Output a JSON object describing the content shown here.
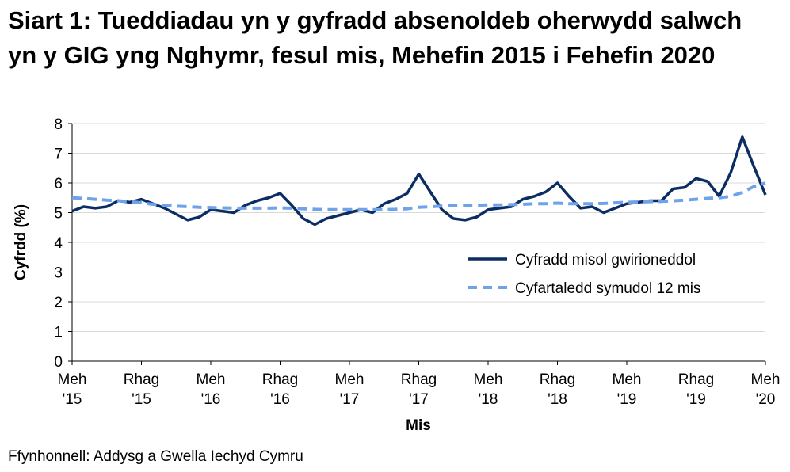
{
  "chart_data": {
    "type": "line",
    "title": "Siart 1: Tueddiadau yn y gyfradd absenoldeb oherwydd salwch yn y GIG yng Nghymr, fesul mis, Mehefin 2015 i Fehefin 2020",
    "y_label": "Cyfrdd (%)",
    "x_label": "Mis",
    "source": "Ffynhonnell: Addysg a Gwella Iechyd Cymru",
    "categories": [
      "Meh '15",
      null,
      null,
      null,
      null,
      null,
      "Rhag '15",
      null,
      null,
      null,
      null,
      null,
      "Meh '16",
      null,
      null,
      null,
      null,
      null,
      "Rhag '16",
      null,
      null,
      null,
      null,
      null,
      "Meh '17",
      null,
      null,
      null,
      null,
      null,
      "Rhag '17",
      null,
      null,
      null,
      null,
      null,
      "Meh '18",
      null,
      null,
      null,
      null,
      null,
      "Rhag '18",
      null,
      null,
      null,
      null,
      null,
      "Meh '19",
      null,
      null,
      null,
      null,
      null,
      "Rhag '19",
      null,
      null,
      null,
      null,
      null,
      "Meh '20"
    ],
    "series": [
      {
        "name": "Cyfradd misol gwirioneddol",
        "color": "#0b2d63",
        "dashed": false,
        "values": [
          5.05,
          5.2,
          5.15,
          5.2,
          5.4,
          5.35,
          5.45,
          5.3,
          5.15,
          4.95,
          4.75,
          4.85,
          5.1,
          5.05,
          5.0,
          5.25,
          5.4,
          5.5,
          5.65,
          5.25,
          4.8,
          4.6,
          4.8,
          4.9,
          5.0,
          5.1,
          5.0,
          5.3,
          5.45,
          5.65,
          6.3,
          5.7,
          5.1,
          4.8,
          4.75,
          4.85,
          5.1,
          5.15,
          5.2,
          5.45,
          5.55,
          5.7,
          6.0,
          5.55,
          5.15,
          5.2,
          5.0,
          5.15,
          5.3,
          5.35,
          5.4,
          5.4,
          5.8,
          5.85,
          6.15,
          6.05,
          5.55,
          6.35,
          7.55,
          6.55,
          5.6
        ]
      },
      {
        "name": "Cyfartaledd symudol 12 mis",
        "color": "#6ea3ea",
        "dashed": true,
        "values": [
          5.5,
          5.48,
          5.45,
          5.42,
          5.4,
          5.37,
          5.33,
          5.28,
          5.25,
          5.22,
          5.2,
          5.18,
          5.17,
          5.16,
          5.15,
          5.15,
          5.15,
          5.15,
          5.16,
          5.15,
          5.13,
          5.11,
          5.1,
          5.1,
          5.1,
          5.1,
          5.1,
          5.1,
          5.11,
          5.13,
          5.18,
          5.2,
          5.22,
          5.23,
          5.25,
          5.25,
          5.26,
          5.26,
          5.27,
          5.28,
          5.3,
          5.3,
          5.32,
          5.3,
          5.3,
          5.3,
          5.31,
          5.33,
          5.35,
          5.36,
          5.37,
          5.38,
          5.4,
          5.42,
          5.45,
          5.48,
          5.5,
          5.55,
          5.68,
          5.88,
          6.0
        ]
      }
    ],
    "ylim": [
      0,
      8
    ],
    "yticks": [
      0,
      1,
      2,
      3,
      4,
      5,
      6,
      7,
      8
    ],
    "grid": true,
    "legend": "right"
  }
}
